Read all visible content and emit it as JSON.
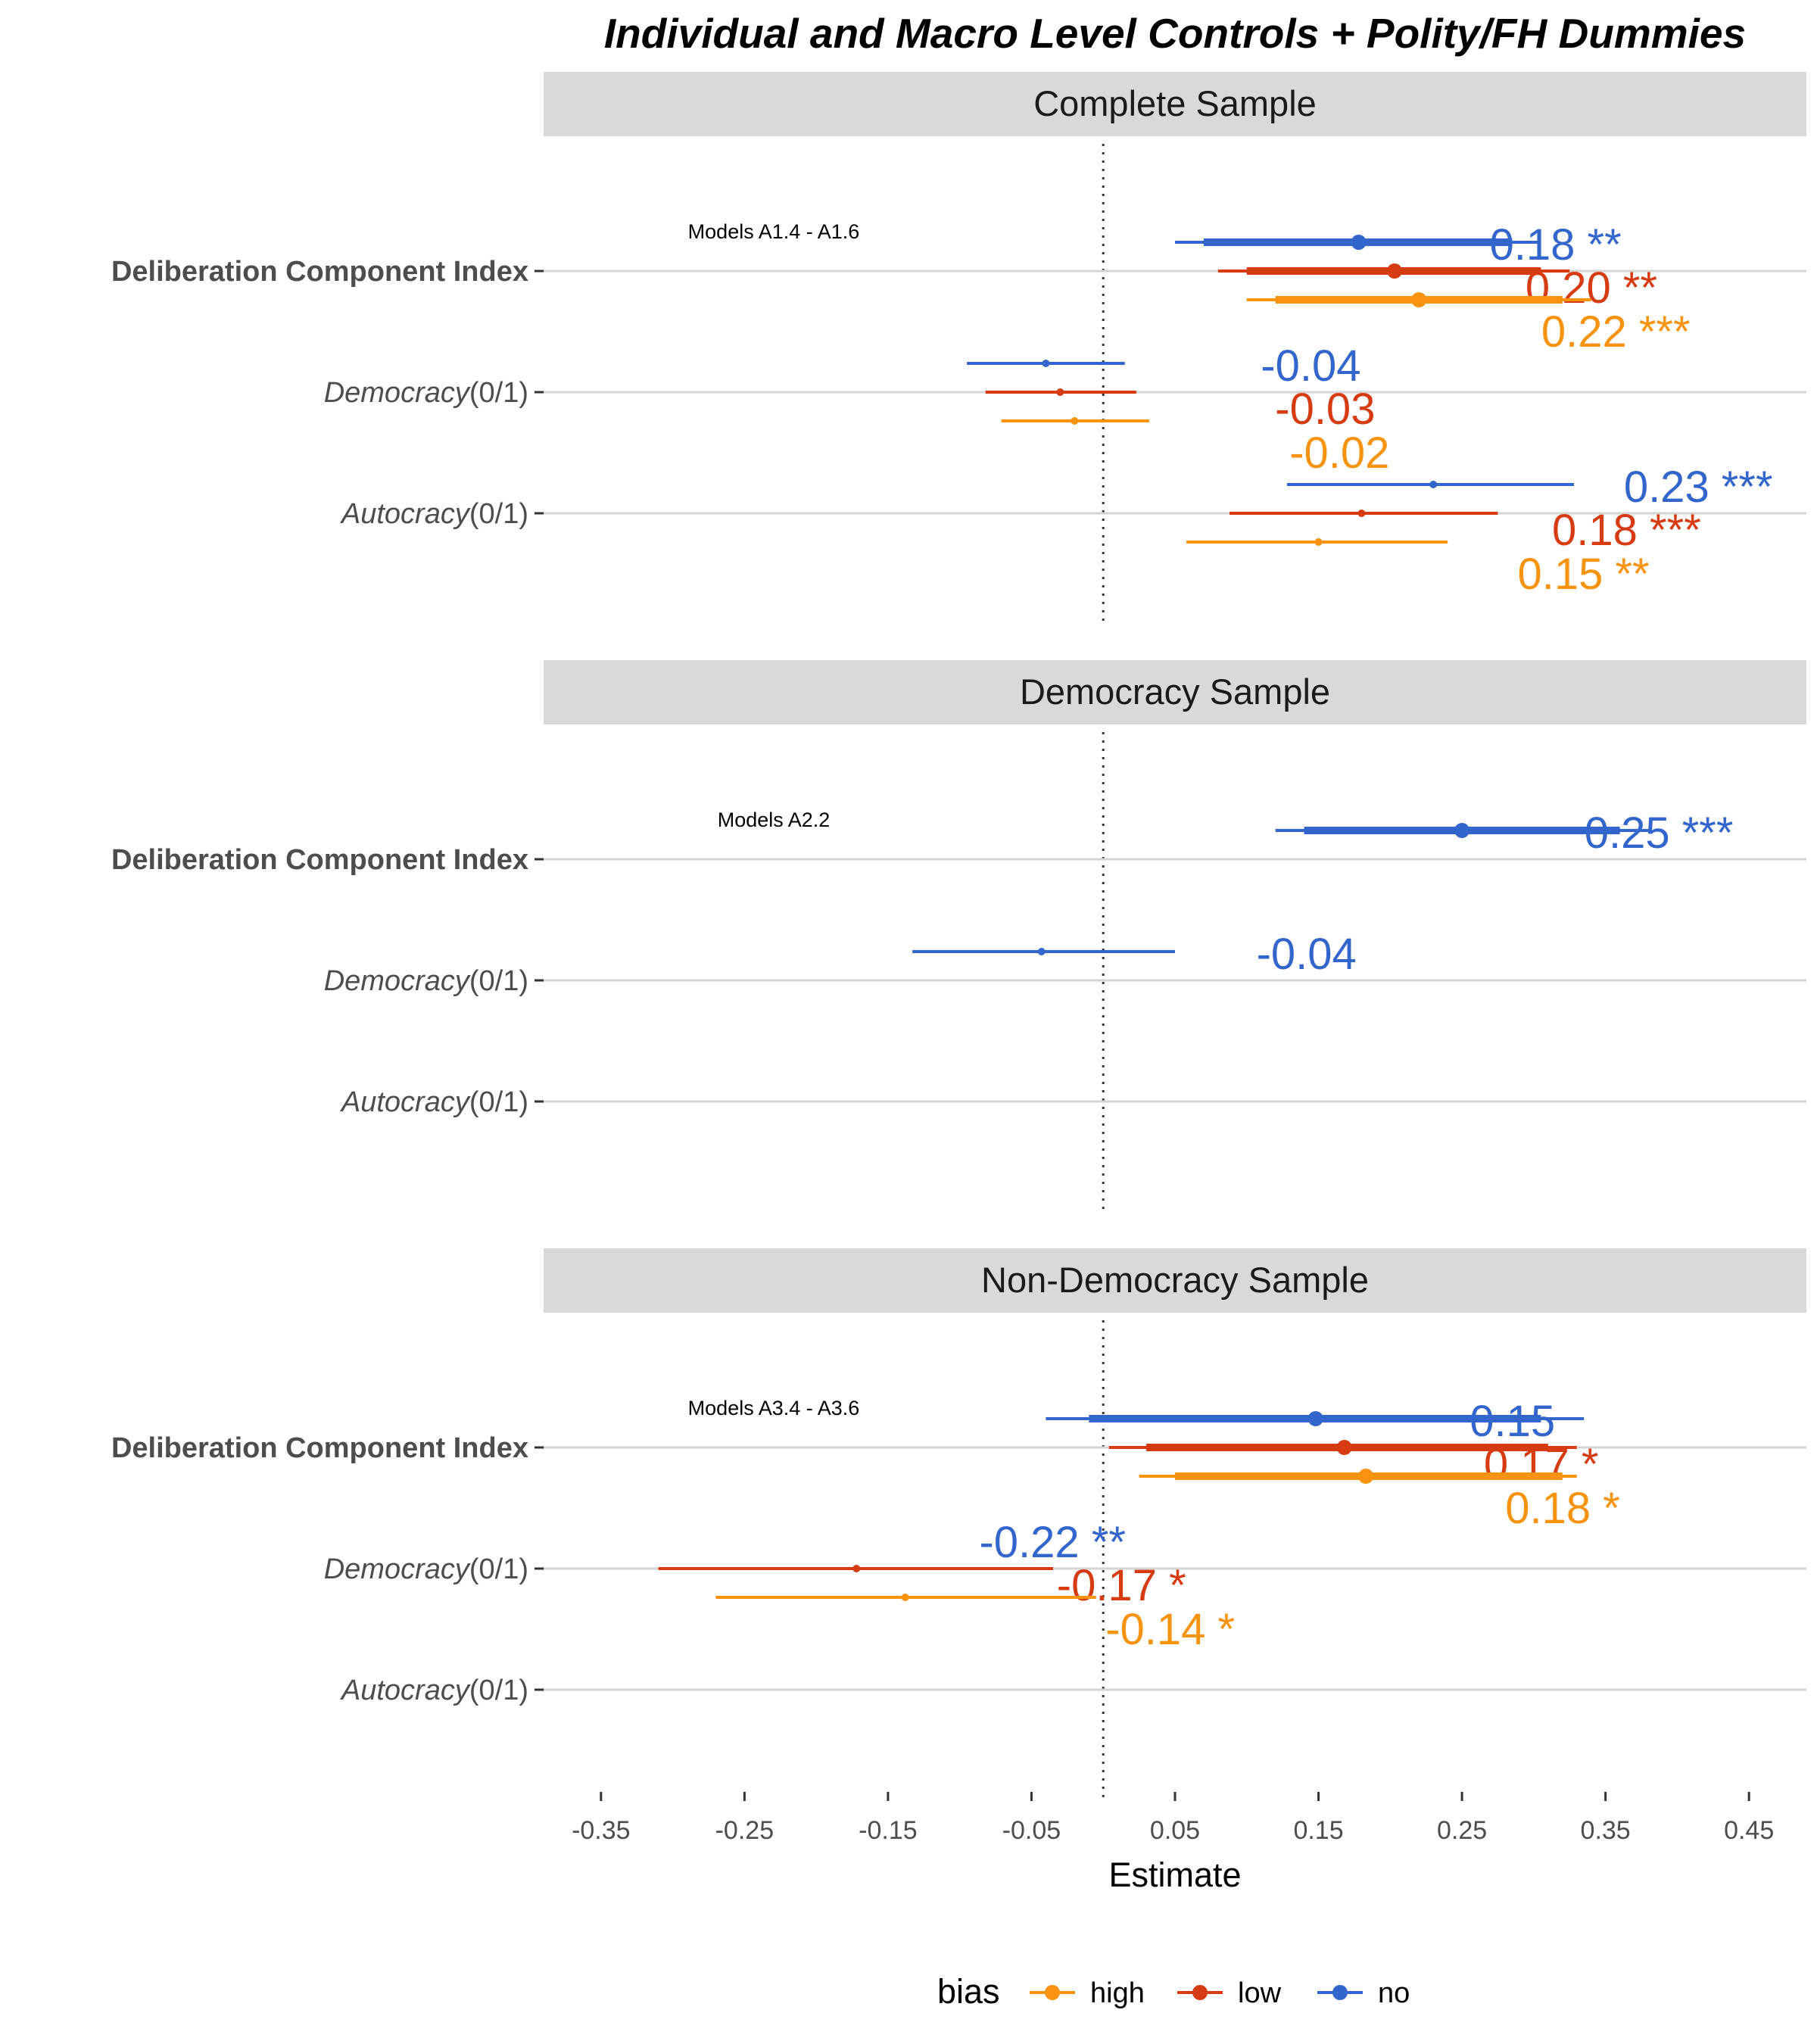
{
  "chart_data": {
    "type": "scatter",
    "title": "Individual and Macro Level Controls + Polity/FH Dummies",
    "xlabel": "Estimate",
    "xlim": [
      -0.39,
      0.49
    ],
    "x_ticks": [
      -0.35,
      -0.25,
      -0.15,
      -0.05,
      0.05,
      0.15,
      0.25,
      0.35,
      0.45
    ],
    "x_tick_labels": [
      "-0.35",
      "-0.25",
      "-0.15",
      "-0.05",
      "0.05",
      "0.15",
      "0.25",
      "0.35",
      "0.45"
    ],
    "reference_line": 0,
    "grid": "horizontal",
    "legend": {
      "title": "bias",
      "position": "bottom",
      "entries": [
        {
          "name": "high",
          "color": "#F7930F"
        },
        {
          "name": "low",
          "color": "#D63B11"
        },
        {
          "name": "no",
          "color": "#3366CC"
        }
      ]
    },
    "row_labels": [
      {
        "prefix": "Deliberation  Component  Index",
        "suffix": "",
        "style": "bold"
      },
      {
        "prefix": "Democracy",
        "suffix": "(0/1)",
        "style": "italic"
      },
      {
        "prefix": "Autocracy",
        "suffix": "(0/1)",
        "style": "italic"
      }
    ],
    "panels": [
      {
        "strip": "Complete Sample",
        "annotation": "Models A1.4 - A1.6",
        "estimates": [
          {
            "row": 0,
            "bias": "no",
            "est": 0.178,
            "ci90": [
              0.07,
              0.285
            ],
            "ci95": [
              0.05,
              0.305
            ],
            "label": "0.18 **"
          },
          {
            "row": 0,
            "bias": "low",
            "est": 0.203,
            "ci90": [
              0.1,
              0.305
            ],
            "ci95": [
              0.08,
              0.325
            ],
            "label": "0.20 **"
          },
          {
            "row": 0,
            "bias": "high",
            "est": 0.22,
            "ci90": [
              0.12,
              0.32
            ],
            "ci95": [
              0.1,
              0.34
            ],
            "label": "0.22 ***"
          },
          {
            "row": 1,
            "bias": "no",
            "est": -0.04,
            "ci95": [
              -0.095,
              0.015
            ],
            "label": "-0.04"
          },
          {
            "row": 1,
            "bias": "low",
            "est": -0.03,
            "ci95": [
              -0.082,
              0.023
            ],
            "label": "-0.03"
          },
          {
            "row": 1,
            "bias": "high",
            "est": -0.02,
            "ci95": [
              -0.071,
              0.032
            ],
            "label": "-0.02"
          },
          {
            "row": 2,
            "bias": "no",
            "est": 0.23,
            "ci95": [
              0.128,
              0.328
            ],
            "label": "0.23 ***"
          },
          {
            "row": 2,
            "bias": "low",
            "est": 0.18,
            "ci95": [
              0.088,
              0.275
            ],
            "label": "0.18 ***"
          },
          {
            "row": 2,
            "bias": "high",
            "est": 0.15,
            "ci95": [
              0.058,
              0.24
            ],
            "label": "0.15 **"
          }
        ]
      },
      {
        "strip": "Democracy Sample",
        "annotation": "Models A2.2",
        "estimates": [
          {
            "row": 0,
            "bias": "no",
            "est": 0.25,
            "ci90": [
              0.14,
              0.36
            ],
            "ci95": [
              0.12,
              0.38
            ],
            "label": "0.25 ***"
          },
          {
            "row": 1,
            "bias": "no",
            "est": -0.043,
            "ci95": [
              -0.133,
              0.05
            ],
            "label": "-0.04"
          }
        ]
      },
      {
        "strip": "Non-Democracy Sample",
        "annotation": "Models A3.4 - A3.6",
        "estimates": [
          {
            "row": 0,
            "bias": "no",
            "est": 0.148,
            "ci90": [
              -0.01,
              0.305
            ],
            "ci95": [
              -0.04,
              0.335
            ],
            "label": "0.15"
          },
          {
            "row": 0,
            "bias": "low",
            "est": 0.168,
            "ci90": [
              0.03,
              0.31
            ],
            "ci95": [
              0.004,
              0.33
            ],
            "label": "0.17 *"
          },
          {
            "row": 0,
            "bias": "high",
            "est": 0.183,
            "ci90": [
              0.05,
              0.32
            ],
            "ci95": [
              0.025,
              0.33
            ],
            "label": "0.18 *"
          },
          {
            "row": 1,
            "bias": "no",
            "est": -0.22,
            "label": "-0.22 **"
          },
          {
            "row": 1,
            "bias": "low",
            "est": -0.172,
            "ci95": [
              -0.31,
              -0.035
            ],
            "label": "-0.17 *"
          },
          {
            "row": 1,
            "bias": "high",
            "est": -0.138,
            "ci95": [
              -0.27,
              -0.005
            ],
            "label": "-0.14 *"
          }
        ]
      }
    ]
  }
}
